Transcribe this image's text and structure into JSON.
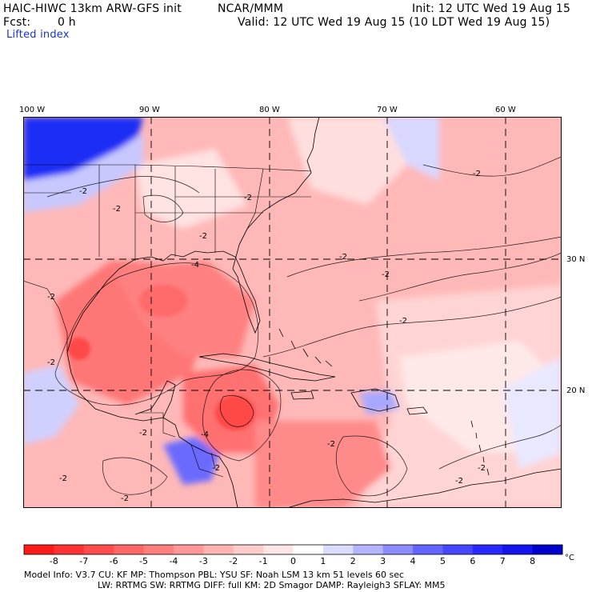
{
  "header": {
    "model": "HAIC-HIWC 13km ARW-GFS init",
    "org": "NCAR/MMM",
    "init": "Init: 12 UTC Wed 19 Aug 15",
    "fcst_label": "Fcst:",
    "fcst_value": "0 h",
    "valid": "Valid: 12 UTC Wed 19 Aug 15 (10 LDT Wed 19 Aug 15)",
    "field": "Lifted index"
  },
  "map": {
    "lon_labels": [
      "100 W",
      "90 W",
      "80 W",
      "70 W",
      "60 W"
    ],
    "lat_labels": [
      "30 N",
      "20 N"
    ],
    "contour_label": "-2",
    "contour_label_4": "-4"
  },
  "colorbar": {
    "ticks": [
      "-8",
      "-7",
      "-6",
      "-5",
      "-4",
      "-3",
      "-2",
      "-1",
      "0",
      "1",
      "2",
      "3",
      "4",
      "5",
      "6",
      "7",
      "8"
    ],
    "unit": "°C",
    "colors": [
      "#ff1a1a",
      "#ff3333",
      "#ff4d4d",
      "#ff6666",
      "#ff7f7f",
      "#ff9999",
      "#ffb3b3",
      "#ffcccc",
      "#ffe6e6",
      "#ffffff",
      "#dcdcff",
      "#b4b4ff",
      "#8c8cff",
      "#6464ff",
      "#4646ff",
      "#2828ff",
      "#1414ee",
      "#0000cc"
    ]
  },
  "footer": {
    "line1": "Model Info: V3.7    CU: KF      MP: Thompson    PBL: YSU       SF: Noah LSM    13 km   51 levels   60 sec",
    "line2": "LW: RRTMG    SW: RRTMG  DIFF: full   KM: 2D Smagor DAMP: Rayleigh3  SFLAY: MM5"
  }
}
